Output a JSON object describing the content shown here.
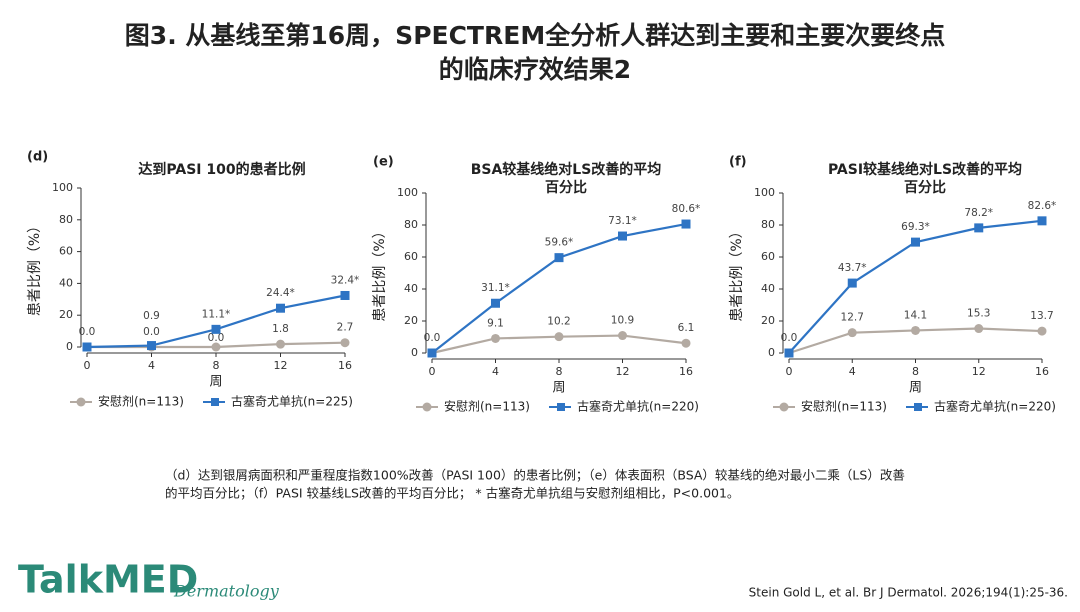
{
  "title": [
    "图3. 从基线至第16周，SPECTREM全分析人群达到主要和主要次要终点",
    "的临床疗效结果2"
  ],
  "chart_data": [
    {
      "type": "line",
      "panel": "(d)",
      "title": [
        "达到PASI 100的患者比例"
      ],
      "ylabel": "患者比例（%）",
      "xlabel": "周",
      "x": [
        0,
        4,
        8,
        12,
        16
      ],
      "xlim": [
        0,
        16
      ],
      "xticks": [
        0,
        4,
        8,
        12,
        16
      ],
      "ylim": [
        0,
        100
      ],
      "yticks": [
        0,
        20,
        40,
        60,
        80,
        100
      ],
      "series": [
        {
          "name": "安慰剂(n=113)",
          "color": "#b3aaa2",
          "marker": "circle",
          "values": [
            0,
            0,
            0,
            1.8,
            2.7
          ],
          "value_labels": [
            null,
            "0.0",
            "0.0",
            "1.8",
            "2.7"
          ]
        },
        {
          "name": "古塞奇尤单抗(n=225)",
          "color": "#2e74c4",
          "marker": "square",
          "values": [
            0,
            0.9,
            11.1,
            24.4,
            32.4
          ],
          "value_labels": [
            "0.0",
            "0.9",
            "11.1*",
            "24.4*",
            "32.4*"
          ]
        }
      ]
    },
    {
      "type": "line",
      "panel": "(e)",
      "title": [
        "BSA较基线绝对LS改善的平均",
        "百分比"
      ],
      "ylabel": "患者比例（%）",
      "xlabel": "周",
      "x": [
        0,
        4,
        8,
        12,
        16
      ],
      "xlim": [
        0,
        16
      ],
      "xticks": [
        0,
        4,
        8,
        12,
        16
      ],
      "ylim": [
        0,
        100
      ],
      "yticks": [
        0,
        20,
        40,
        60,
        80,
        100
      ],
      "series": [
        {
          "name": "安慰剂(n=113)",
          "color": "#b3aaa2",
          "marker": "circle",
          "values": [
            0,
            9.1,
            10.2,
            10.9,
            6.1
          ],
          "value_labels": [
            null,
            "9.1",
            "10.2",
            "10.9",
            "6.1"
          ]
        },
        {
          "name": "古塞奇尤单抗(n=220)",
          "color": "#2e74c4",
          "marker": "square",
          "values": [
            0,
            31.1,
            59.6,
            73.1,
            80.6
          ],
          "value_labels": [
            "0.0",
            "31.1*",
            "59.6*",
            "73.1*",
            "80.6*"
          ]
        }
      ]
    },
    {
      "type": "line",
      "panel": "(f)",
      "title": [
        "PASI较基线绝对LS改善的平均",
        "百分比"
      ],
      "ylabel": "患者比例（%）",
      "xlabel": "周",
      "x": [
        0,
        4,
        8,
        12,
        16
      ],
      "xlim": [
        0,
        16
      ],
      "xticks": [
        0,
        4,
        8,
        12,
        16
      ],
      "ylim": [
        0,
        100
      ],
      "yticks": [
        0,
        20,
        40,
        60,
        80,
        100
      ],
      "series": [
        {
          "name": "安慰剂(n=113)",
          "color": "#b3aaa2",
          "marker": "circle",
          "values": [
            0,
            12.7,
            14.1,
            15.3,
            13.7
          ],
          "value_labels": [
            null,
            "12.7",
            "14.1",
            "15.3",
            "13.7"
          ]
        },
        {
          "name": "古塞奇尤单抗(n=220)",
          "color": "#2e74c4",
          "marker": "square",
          "values": [
            0,
            43.7,
            69.3,
            78.2,
            82.6
          ],
          "value_labels": [
            "0.0",
            "43.7*",
            "69.3*",
            "78.2*",
            "82.6*"
          ]
        }
      ]
    }
  ],
  "footnote": [
    "（d）达到银屑病面积和严重程度指数100%改善（PASI 100）的患者比例；（e）体表面积（BSA）较基线的绝对最小二乘（LS）改善",
    "的平均百分比；（f）PASI 较基线LS改善的平均百分比； * 古塞奇尤单抗组与安慰剂组相比，P<0.001。"
  ],
  "logo": {
    "brand": "TalkMED",
    "sub": "Dermatology"
  },
  "citation": "Stein Gold L, et al. Br J Dermatol. 2026;194(1):25-36."
}
